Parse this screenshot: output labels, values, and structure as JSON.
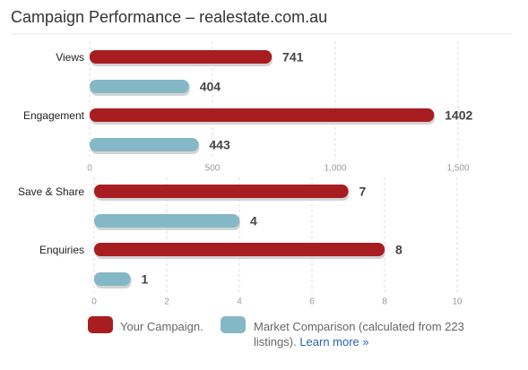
{
  "title": "Campaign Performance – realestate.com.au",
  "legend_link": "Learn more »",
  "chart_data": [
    {
      "type": "hbar",
      "categories": [
        "Views",
        "Engagement"
      ],
      "series": [
        {
          "name": "Your Campaign.",
          "color": "#a81d1f",
          "values": [
            741,
            1402
          ]
        },
        {
          "name": "Market Comparison (calculated from 223 listings).",
          "color": "#84b8c6",
          "values": [
            404,
            443
          ]
        }
      ],
      "xlim": [
        0,
        1500
      ],
      "xticks": [
        0,
        500,
        {
          "value": 1000,
          "label": "1,000"
        },
        {
          "value": 1500,
          "label": "1,500"
        }
      ],
      "grid": true
    },
    {
      "type": "hbar",
      "categories": [
        "Save & Share",
        "Enquiries"
      ],
      "series": [
        {
          "color": "#a81d1f",
          "values": [
            7,
            8
          ]
        },
        {
          "color": "#84b8c6",
          "values": [
            4,
            1
          ]
        }
      ],
      "xlim": [
        0,
        10
      ],
      "xticks": [
        0,
        2,
        4,
        6,
        8,
        10
      ],
      "grid": true
    }
  ]
}
